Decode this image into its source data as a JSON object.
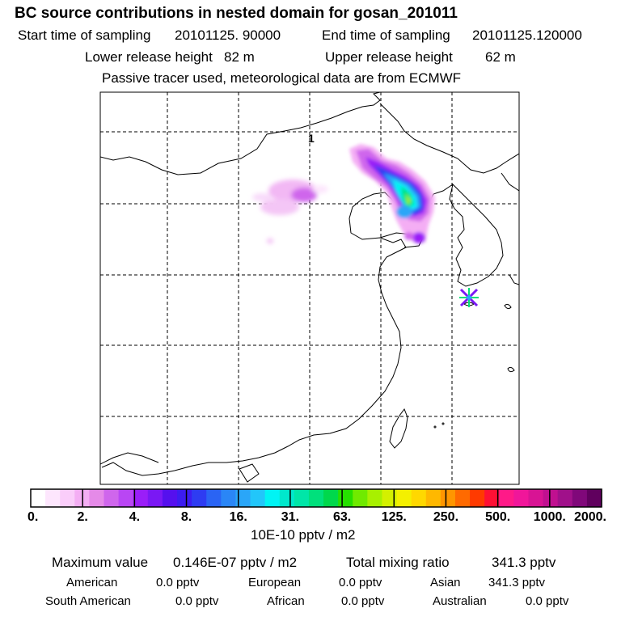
{
  "header": {
    "title": "BC  source contributions in nested domain for gosan_201011",
    "start_label": "Start time of sampling",
    "start_value": "20101125. 90000",
    "end_label": "End time of sampling",
    "end_value": "20101125.120000",
    "lower_label": "Lower release height",
    "lower_value": "82 m",
    "upper_label": "Upper release height",
    "upper_value": "62 m",
    "tracer_note": "Passive tracer used, meteorological data are from ECMWF"
  },
  "map": {
    "grid_label": "1",
    "receptor": "gosan"
  },
  "colorbar": {
    "ticks": [
      "0.",
      "2.",
      "4.",
      "8.",
      "16.",
      "31.",
      "63.",
      "125.",
      "250.",
      "500.",
      "1000.",
      "2000."
    ],
    "unit_label": "10E-10 pptv / m2",
    "colors": [
      "#ffffff",
      "#fde6fd",
      "#facdfa",
      "#f4aef4",
      "#e58ae8",
      "#cf66ec",
      "#b946f4",
      "#9a1ef8",
      "#7a18f4",
      "#5510ee",
      "#3c1cf0",
      "#2e3cf2",
      "#2a64f4",
      "#2a86f6",
      "#2aa6f8",
      "#22c6fa",
      "#00f4f4",
      "#00e8cc",
      "#00e6a8",
      "#00e07c",
      "#00d84c",
      "#26e000",
      "#70ea00",
      "#a8f000",
      "#d4f000",
      "#f4f000",
      "#ffd800",
      "#ffb800",
      "#ff9600",
      "#ff6a00",
      "#ff3a00",
      "#ff1034",
      "#ff1a88",
      "#f0169a",
      "#d81494",
      "#c01090",
      "#a0108a",
      "#80087a",
      "#60005e"
    ]
  },
  "summary": {
    "max_label": "Maximum value",
    "max_value": "0.146E-07 pptv / m2",
    "total_label": "Total mixing ratio",
    "total_value": "341.3 pptv",
    "regions": [
      {
        "name": "American",
        "value": "0.0 pptv"
      },
      {
        "name": "European",
        "value": "0.0 pptv"
      },
      {
        "name": "Asian",
        "value": "341.3 pptv"
      },
      {
        "name": "South American",
        "value": "0.0 pptv"
      },
      {
        "name": "African",
        "value": "0.0 pptv"
      },
      {
        "name": "Australian",
        "value": "0.0 pptv"
      }
    ]
  }
}
